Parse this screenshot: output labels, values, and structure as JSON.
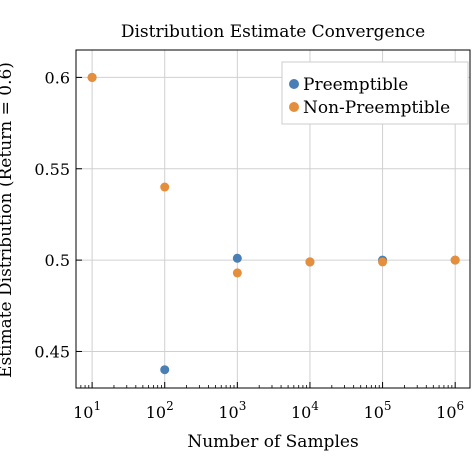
{
  "chart_data": {
    "type": "scatter",
    "title": "Distribution Estimate Convergence",
    "xlabel": "Number of Samples",
    "ylabel": "Estimate Distribution (Return = 0.6)",
    "x_scale": "log",
    "xlim": [
      6,
      1600000
    ],
    "ylim": [
      0.43,
      0.615
    ],
    "x_ticks": [
      {
        "value": 10,
        "base": "10",
        "exp": "1"
      },
      {
        "value": 100,
        "base": "10",
        "exp": "2"
      },
      {
        "value": 1000,
        "base": "10",
        "exp": "3"
      },
      {
        "value": 10000,
        "base": "10",
        "exp": "4"
      },
      {
        "value": 100000,
        "base": "10",
        "exp": "5"
      },
      {
        "value": 1000000,
        "base": "10",
        "exp": "6"
      }
    ],
    "y_ticks": [
      {
        "value": 0.45,
        "label": "0.45"
      },
      {
        "value": 0.5,
        "label": "0.5"
      },
      {
        "value": 0.55,
        "label": "0.55"
      },
      {
        "value": 0.6,
        "label": "0.6"
      }
    ],
    "grid": true,
    "legend_position": "top-right",
    "series": [
      {
        "name": "Preemptible",
        "color": "#4a7fb5",
        "points": [
          {
            "x": 10,
            "y": 0.6
          },
          {
            "x": 100,
            "y": 0.44
          },
          {
            "x": 1000,
            "y": 0.501
          },
          {
            "x": 10000,
            "y": 0.499
          },
          {
            "x": 100000,
            "y": 0.5
          },
          {
            "x": 1000000,
            "y": 0.5
          }
        ]
      },
      {
        "name": "Non-Preemptible",
        "color": "#e58e3b",
        "points": [
          {
            "x": 10,
            "y": 0.6
          },
          {
            "x": 100,
            "y": 0.54
          },
          {
            "x": 1000,
            "y": 0.493
          },
          {
            "x": 10000,
            "y": 0.499
          },
          {
            "x": 100000,
            "y": 0.499
          },
          {
            "x": 1000000,
            "y": 0.5
          }
        ]
      }
    ]
  }
}
